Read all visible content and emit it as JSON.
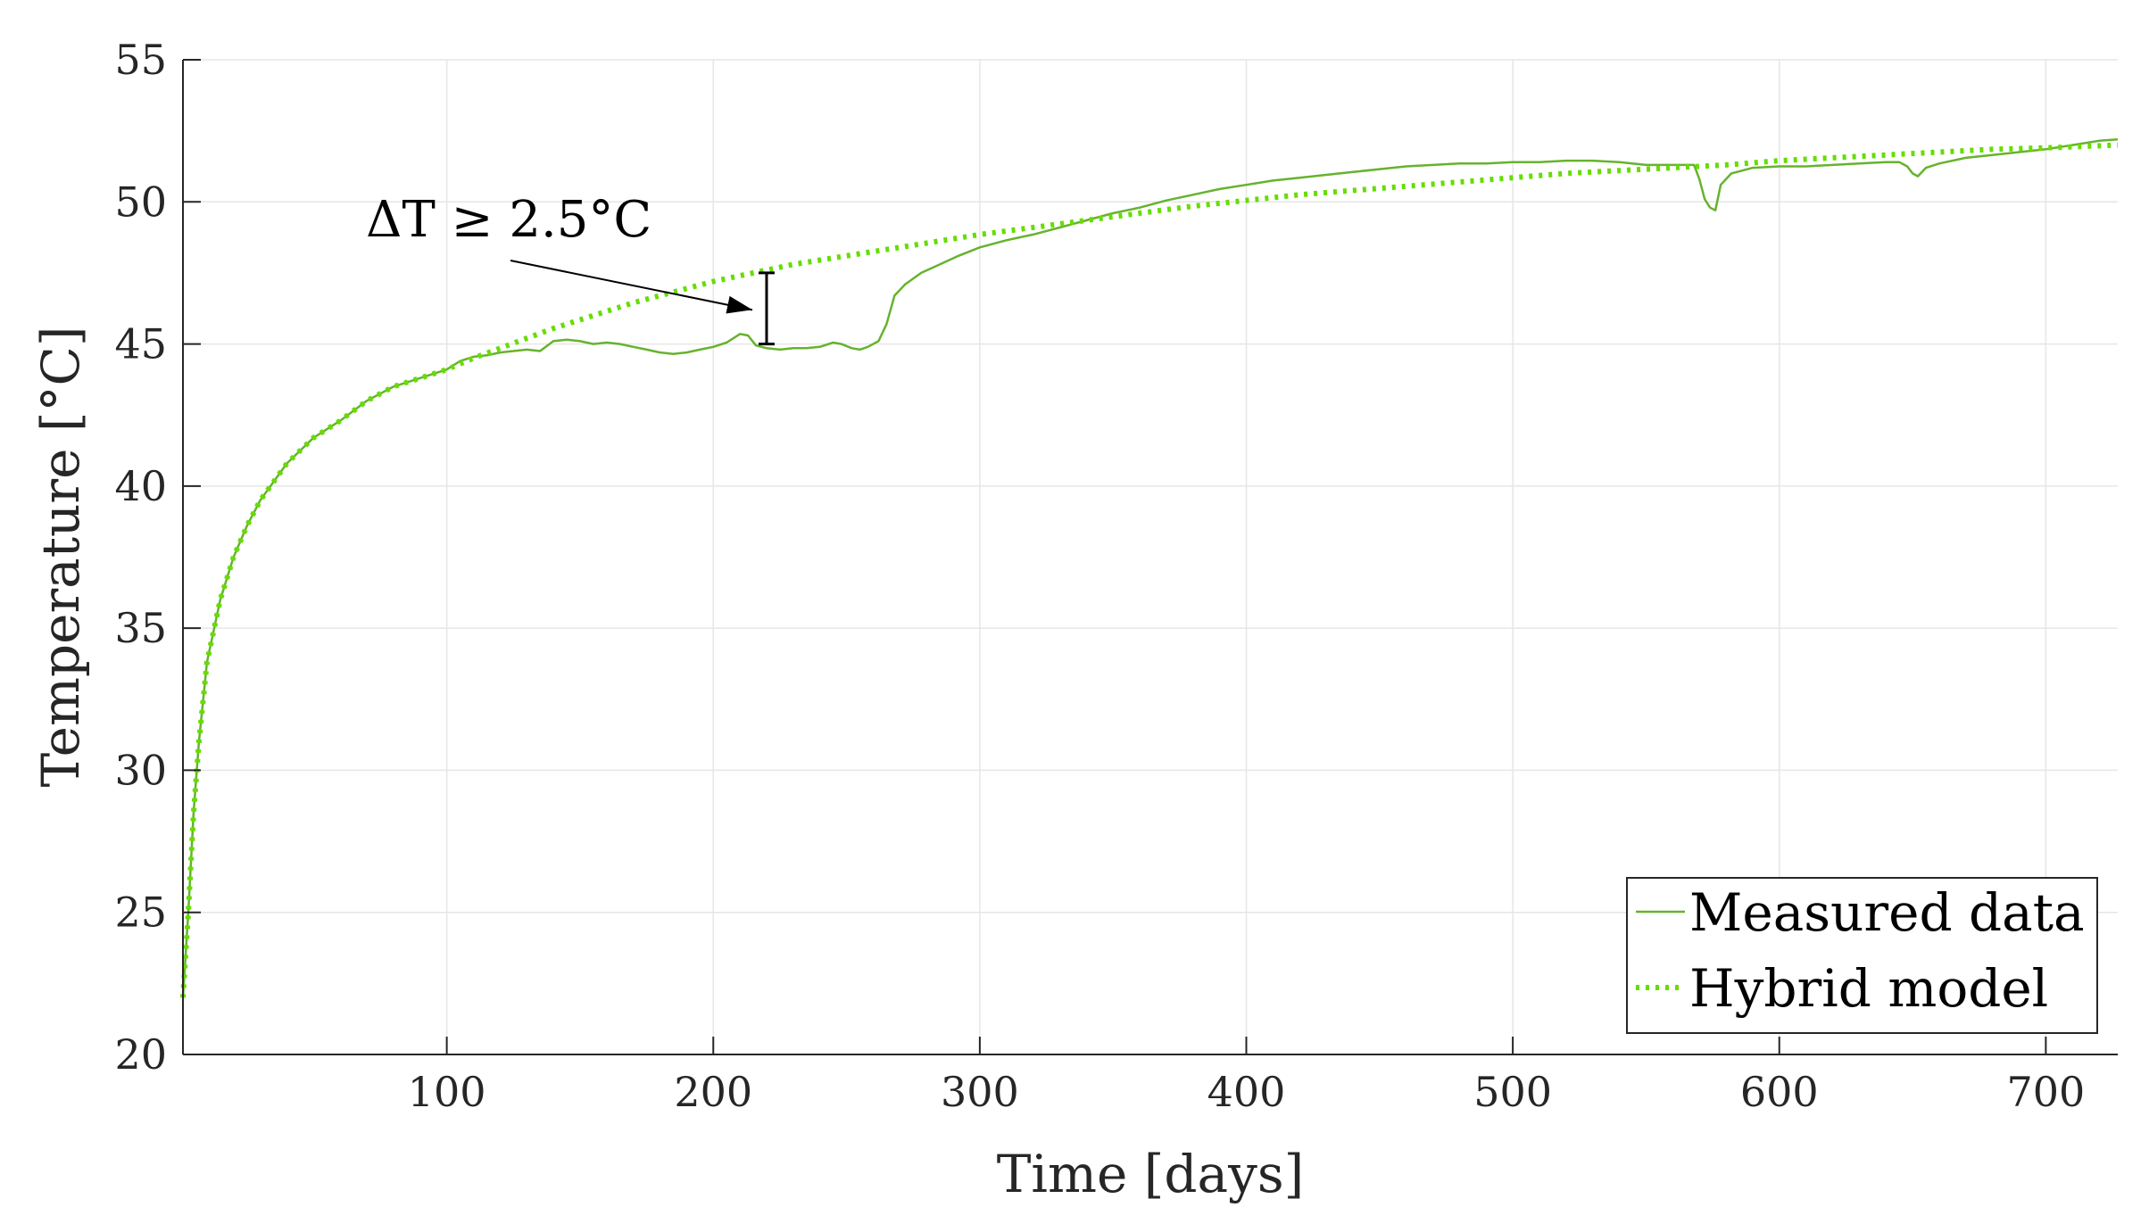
{
  "chart_data": {
    "type": "line",
    "xlabel": "Time [days]",
    "ylabel": "Temperature [°C]",
    "xlim": [
      1,
      727
    ],
    "ylim": [
      20,
      55
    ],
    "xticks": [
      100,
      200,
      300,
      400,
      500,
      600,
      700
    ],
    "yticks": [
      20,
      25,
      30,
      35,
      40,
      45,
      50,
      55
    ],
    "grid": true,
    "legend_position": "bottom-right",
    "annotation": {
      "text": "ΔT ≥ 2.5°C",
      "arrow_to": [
        220,
        46.2
      ],
      "error_bar": {
        "x": 220,
        "y_low": 45.0,
        "y_high": 47.5
      }
    },
    "series": [
      {
        "name": "Measured data",
        "color": "#66b32e",
        "style": "solid",
        "x": [
          1,
          3,
          5,
          7,
          10,
          15,
          20,
          25,
          30,
          40,
          50,
          60,
          70,
          80,
          90,
          100,
          105,
          110,
          115,
          120,
          125,
          130,
          135,
          140,
          145,
          150,
          155,
          160,
          165,
          170,
          175,
          180,
          185,
          190,
          195,
          200,
          205,
          210,
          213,
          216,
          220,
          225,
          230,
          235,
          240,
          245,
          248,
          252,
          255,
          258,
          262,
          265,
          268,
          272,
          278,
          285,
          292,
          300,
          310,
          320,
          330,
          340,
          350,
          360,
          370,
          380,
          390,
          400,
          410,
          420,
          430,
          440,
          450,
          460,
          470,
          480,
          490,
          500,
          510,
          520,
          530,
          540,
          550,
          560,
          565,
          568,
          570,
          572,
          574,
          576,
          578,
          582,
          590,
          600,
          610,
          620,
          630,
          640,
          645,
          648,
          650,
          652,
          655,
          660,
          670,
          680,
          690,
          700,
          710,
          720,
          727
        ],
        "y": [
          22.0,
          25.0,
          28.5,
          31.0,
          33.8,
          36.0,
          37.5,
          38.6,
          39.5,
          40.8,
          41.7,
          42.3,
          43.0,
          43.5,
          43.8,
          44.1,
          44.4,
          44.55,
          44.6,
          44.7,
          44.75,
          44.8,
          44.75,
          45.1,
          45.15,
          45.1,
          45.0,
          45.05,
          45.0,
          44.9,
          44.8,
          44.7,
          44.65,
          44.7,
          44.8,
          44.9,
          45.05,
          45.35,
          45.3,
          44.95,
          44.85,
          44.8,
          44.85,
          44.85,
          44.9,
          45.05,
          45.0,
          44.85,
          44.8,
          44.9,
          45.1,
          45.7,
          46.7,
          47.1,
          47.5,
          47.8,
          48.1,
          48.4,
          48.65,
          48.85,
          49.1,
          49.35,
          49.6,
          49.8,
          50.05,
          50.25,
          50.45,
          50.6,
          50.75,
          50.85,
          50.95,
          51.05,
          51.15,
          51.25,
          51.3,
          51.35,
          51.35,
          51.4,
          51.4,
          51.45,
          51.45,
          51.4,
          51.3,
          51.3,
          51.3,
          51.3,
          50.8,
          50.1,
          49.8,
          49.7,
          50.6,
          51.0,
          51.2,
          51.25,
          51.25,
          51.3,
          51.35,
          51.4,
          51.4,
          51.25,
          51.0,
          50.9,
          51.2,
          51.35,
          51.55,
          51.65,
          51.75,
          51.85,
          52.0,
          52.15,
          52.2
        ]
      },
      {
        "name": "Hybrid model",
        "color": "#66dd00",
        "style": "dotted",
        "x": [
          1,
          3,
          5,
          7,
          10,
          15,
          20,
          25,
          30,
          40,
          50,
          60,
          70,
          80,
          90,
          100,
          110,
          120,
          130,
          140,
          150,
          160,
          170,
          180,
          190,
          200,
          210,
          220,
          230,
          240,
          250,
          260,
          270,
          280,
          290,
          300,
          320,
          340,
          360,
          380,
          400,
          420,
          440,
          460,
          480,
          500,
          520,
          540,
          560,
          580,
          600,
          620,
          640,
          660,
          680,
          700,
          727
        ],
        "y": [
          22.0,
          25.0,
          28.5,
          31.0,
          33.8,
          36.0,
          37.5,
          38.6,
          39.5,
          40.8,
          41.7,
          42.3,
          43.0,
          43.5,
          43.8,
          44.1,
          44.5,
          44.85,
          45.2,
          45.55,
          45.85,
          46.15,
          46.45,
          46.7,
          46.95,
          47.2,
          47.4,
          47.6,
          47.8,
          47.95,
          48.1,
          48.25,
          48.4,
          48.55,
          48.7,
          48.85,
          49.1,
          49.35,
          49.6,
          49.85,
          50.05,
          50.25,
          50.4,
          50.55,
          50.7,
          50.85,
          51.0,
          51.1,
          51.2,
          51.3,
          51.45,
          51.55,
          51.65,
          51.75,
          51.85,
          51.9,
          52.0
        ]
      }
    ]
  }
}
